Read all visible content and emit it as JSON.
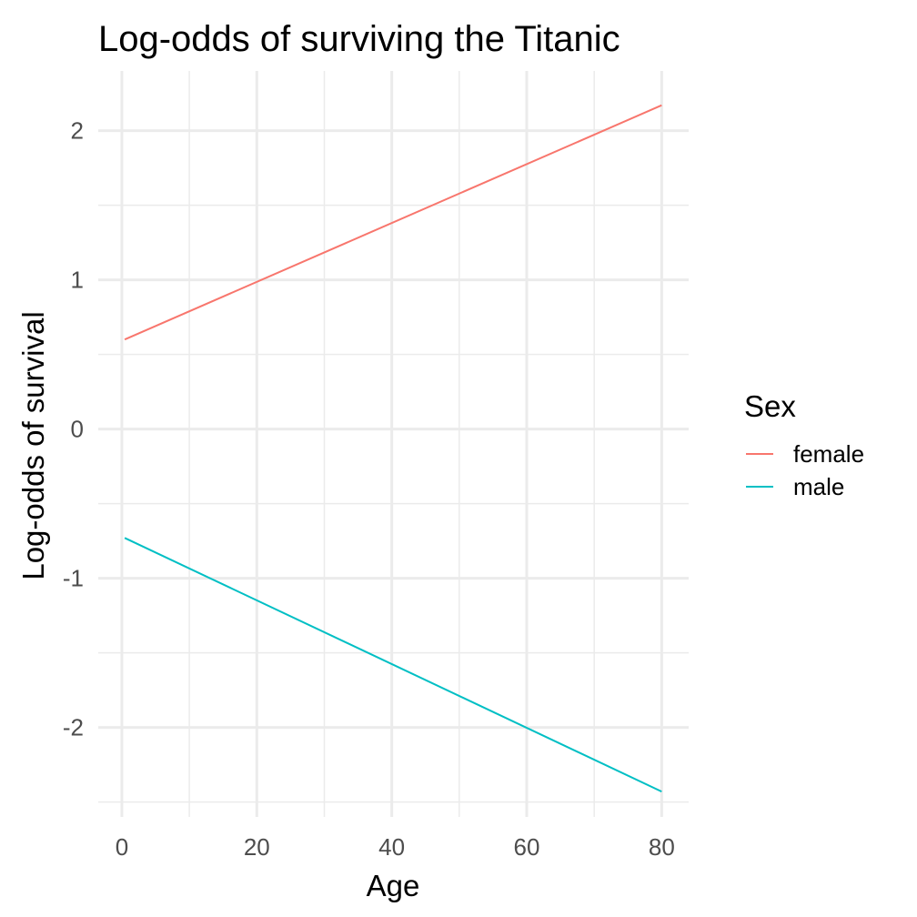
{
  "chart_data": {
    "type": "line",
    "title": "Log-odds of surviving the Titanic",
    "xlabel": "Age",
    "ylabel": "Log-odds of survival",
    "xlim": [
      -3.5,
      84
    ],
    "ylim": [
      -2.6,
      2.4
    ],
    "x_ticks": [
      0,
      20,
      40,
      60,
      80
    ],
    "x_tick_labels": [
      "0",
      "20",
      "40",
      "60",
      "80"
    ],
    "x_minor_ticks": [
      10,
      30,
      50,
      70
    ],
    "y_ticks": [
      -2,
      -1,
      0,
      1,
      2
    ],
    "y_tick_labels": [
      "-2",
      "-1",
      "0",
      "1",
      "2"
    ],
    "y_minor_ticks": [
      -2.5,
      -1.5,
      -0.5,
      0.5,
      1.5
    ],
    "grid": true,
    "legend": {
      "title": "Sex",
      "placement": "right"
    },
    "series": [
      {
        "name": "female",
        "color": "#F8766D",
        "x": [
          0.42,
          80
        ],
        "y": [
          0.6,
          2.17
        ]
      },
      {
        "name": "male",
        "color": "#00BFC4",
        "x": [
          0.42,
          80
        ],
        "y": [
          -0.73,
          -2.43
        ]
      }
    ]
  }
}
